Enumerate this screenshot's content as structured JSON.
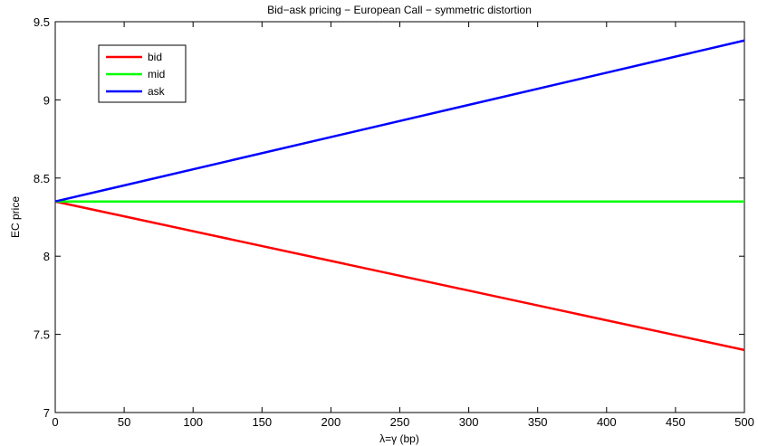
{
  "chart_data": {
    "type": "line",
    "title": "Bid−ask pricing − European Call − symmetric distortion",
    "xlabel": "λ=γ (bp)",
    "ylabel": "EC price",
    "xlim": [
      0,
      500
    ],
    "ylim": [
      7,
      9.5
    ],
    "xticks": [
      0,
      50,
      100,
      150,
      200,
      250,
      300,
      350,
      400,
      450,
      500
    ],
    "xtick_labels": [
      "0",
      "50",
      "100",
      "150",
      "200",
      "250",
      "300",
      "350",
      "400",
      "450",
      "500"
    ],
    "yticks": [
      7,
      7.5,
      8,
      8.5,
      9,
      9.5
    ],
    "ytick_labels": [
      "7",
      "7.5",
      "8",
      "8.5",
      "9",
      "9.5"
    ],
    "grid": false,
    "legend_position": "top-left",
    "series": [
      {
        "name": "bid",
        "color": "#ff0000",
        "x": [
          0,
          500
        ],
        "y": [
          8.35,
          7.4
        ]
      },
      {
        "name": "mid",
        "color": "#00ff00",
        "x": [
          0,
          500
        ],
        "y": [
          8.35,
          8.35
        ]
      },
      {
        "name": "ask",
        "color": "#0000ff",
        "x": [
          0,
          500
        ],
        "y": [
          8.35,
          9.38
        ]
      }
    ]
  }
}
